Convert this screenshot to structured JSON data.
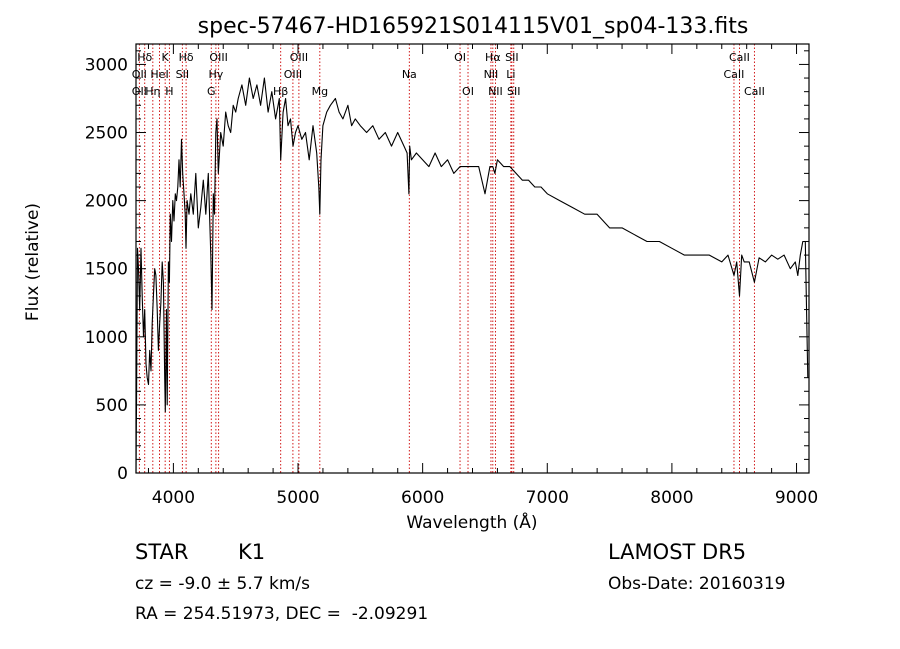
{
  "chart_data": {
    "type": "line",
    "title": "spec-57467-HD165921S014115V01_sp04-133.fits",
    "xlabel": "Wavelength (Å)",
    "ylabel": "Flux (relative)",
    "xlim": [
      3700,
      9100
    ],
    "ylim": [
      0,
      3150
    ],
    "x_ticks": [
      4000,
      5000,
      6000,
      7000,
      8000,
      9000
    ],
    "y_ticks": [
      0,
      500,
      1000,
      1500,
      2000,
      2500,
      3000
    ],
    "grid": false,
    "series": [
      {
        "x": [
          3700,
          3705,
          3712,
          3720,
          3730,
          3740,
          3750,
          3760,
          3770,
          3780,
          3790,
          3800,
          3810,
          3820,
          3830,
          3840,
          3850,
          3860,
          3870,
          3880,
          3890,
          3900,
          3910,
          3920,
          3930,
          3935,
          3945,
          3950,
          3960,
          3968,
          3975,
          3985,
          3995,
          4005,
          4015,
          4025,
          4035,
          4045,
          4055,
          4065,
          4075,
          4085,
          4095,
          4101,
          4110,
          4125,
          4140,
          4160,
          4180,
          4200,
          4220,
          4240,
          4260,
          4280,
          4300,
          4310,
          4320,
          4330,
          4340,
          4350,
          4360,
          4380,
          4400,
          4420,
          4440,
          4460,
          4480,
          4500,
          4520,
          4550,
          4580,
          4610,
          4640,
          4670,
          4700,
          4730,
          4760,
          4790,
          4820,
          4850,
          4861,
          4880,
          4900,
          4920,
          4940,
          4960,
          4980,
          5000,
          5030,
          5060,
          5090,
          5120,
          5150,
          5167,
          5175,
          5184,
          5200,
          5230,
          5260,
          5300,
          5330,
          5360,
          5400,
          5430,
          5460,
          5500,
          5550,
          5600,
          5650,
          5700,
          5750,
          5800,
          5850,
          5875,
          5890,
          5896,
          5910,
          5950,
          6000,
          6050,
          6100,
          6150,
          6200,
          6250,
          6300,
          6350,
          6400,
          6450,
          6500,
          6540,
          6563,
          6580,
          6600,
          6650,
          6700,
          6750,
          6800,
          6850,
          6900,
          6950,
          7000,
          7100,
          7200,
          7300,
          7400,
          7500,
          7600,
          7700,
          7800,
          7900,
          8000,
          8100,
          8200,
          8300,
          8400,
          8450,
          8498,
          8520,
          8542,
          8560,
          8580,
          8620,
          8662,
          8700,
          8750,
          8800,
          8850,
          8900,
          8950,
          8990,
          9010,
          9030,
          9050,
          9070,
          9090
        ],
        "y": [
          0,
          600,
          1650,
          1500,
          1200,
          1650,
          1300,
          1000,
          1200,
          800,
          700,
          650,
          900,
          750,
          1100,
          1300,
          1500,
          1450,
          1200,
          900,
          1100,
          1250,
          1550,
          1400,
          700,
          450,
          1200,
          500,
          1550,
          1400,
          1900,
          1700,
          2000,
          1850,
          2050,
          2000,
          2100,
          2300,
          2100,
          2450,
          2200,
          2050,
          1900,
          1650,
          2000,
          1900,
          2050,
          1900,
          2200,
          1800,
          1950,
          2150,
          1900,
          2200,
          1600,
          1200,
          2050,
          1900,
          2500,
          2600,
          2200,
          2500,
          2400,
          2650,
          2550,
          2500,
          2700,
          2650,
          2750,
          2850,
          2700,
          2900,
          2750,
          2850,
          2700,
          2900,
          2650,
          2800,
          2600,
          2750,
          2300,
          2650,
          2750,
          2550,
          2600,
          2400,
          2500,
          2550,
          2450,
          2500,
          2300,
          2550,
          2350,
          2100,
          1900,
          2300,
          2550,
          2650,
          2700,
          2750,
          2650,
          2600,
          2700,
          2550,
          2600,
          2550,
          2500,
          2550,
          2450,
          2500,
          2400,
          2500,
          2400,
          2350,
          2050,
          2400,
          2300,
          2350,
          2300,
          2250,
          2350,
          2250,
          2300,
          2200,
          2250,
          2250,
          2250,
          2250,
          2050,
          2250,
          2250,
          2200,
          2300,
          2250,
          2250,
          2200,
          2150,
          2150,
          2100,
          2100,
          2050,
          2000,
          1950,
          1900,
          1900,
          1800,
          1800,
          1750,
          1700,
          1700,
          1650,
          1600,
          1600,
          1600,
          1550,
          1600,
          1450,
          1550,
          1300,
          1600,
          1550,
          1550,
          1400,
          1580,
          1550,
          1600,
          1570,
          1600,
          1500,
          1550,
          1450,
          1600,
          1700,
          1700,
          700
        ]
      }
    ],
    "line_markers": [
      {
        "name": "Hδ",
        "x": 3770,
        "row": 1
      },
      {
        "name": "K",
        "x": 3934,
        "row": 1
      },
      {
        "name": "Hδ",
        "x": 4102,
        "row": 1
      },
      {
        "name": "OIII",
        "x": 4363,
        "row": 1
      },
      {
        "name": "OIII",
        "x": 5007,
        "row": 1
      },
      {
        "name": "OI",
        "x": 6300,
        "row": 1
      },
      {
        "name": "Hα",
        "x": 6563,
        "row": 1
      },
      {
        "name": "SII",
        "x": 6716,
        "row": 1
      },
      {
        "name": "CaII",
        "x": 8542,
        "row": 1
      },
      {
        "name": "OII",
        "x": 3727,
        "row": 2
      },
      {
        "name": "HeI",
        "x": 3889,
        "row": 2
      },
      {
        "name": "SII",
        "x": 4072,
        "row": 2
      },
      {
        "name": "Hγ",
        "x": 4341,
        "row": 2
      },
      {
        "name": "OIII",
        "x": 4959,
        "row": 2
      },
      {
        "name": "Na",
        "x": 5893,
        "row": 2
      },
      {
        "name": "NII",
        "x": 6548,
        "row": 2
      },
      {
        "name": "Li",
        "x": 6708,
        "row": 2
      },
      {
        "name": "CaII",
        "x": 8498,
        "row": 2
      },
      {
        "name": "OII",
        "x": 3727,
        "row": 3
      },
      {
        "name": "Hη",
        "x": 3835,
        "row": 3
      },
      {
        "name": "H",
        "x": 3968,
        "row": 3
      },
      {
        "name": "G",
        "x": 4304,
        "row": 3
      },
      {
        "name": "Hβ",
        "x": 4861,
        "row": 3
      },
      {
        "name": "Mg",
        "x": 5175,
        "row": 3
      },
      {
        "name": "OI",
        "x": 6364,
        "row": 3
      },
      {
        "name": "NII",
        "x": 6584,
        "row": 3
      },
      {
        "name": "SII",
        "x": 6731,
        "row": 3
      },
      {
        "name": "CaII",
        "x": 8662,
        "row": 3
      }
    ],
    "marker_lines_x": [
      3727,
      3770,
      3835,
      3889,
      3934,
      3968,
      4072,
      4102,
      4304,
      4341,
      4363,
      4861,
      4959,
      5007,
      5175,
      5893,
      6300,
      6364,
      6548,
      6563,
      6584,
      6708,
      6716,
      6731,
      8498,
      8542,
      8662
    ],
    "marker_line_color": "#cc0000",
    "line_color": "#000000"
  },
  "info": {
    "object_class": "STAR",
    "subclass": "K1",
    "survey": "LAMOST DR5",
    "redshift": "cz = -9.0 ± 5.7 km/s",
    "obs_date": "Obs-Date: 20160319",
    "coords": "RA = 254.51973, DEC =  -2.09291"
  }
}
